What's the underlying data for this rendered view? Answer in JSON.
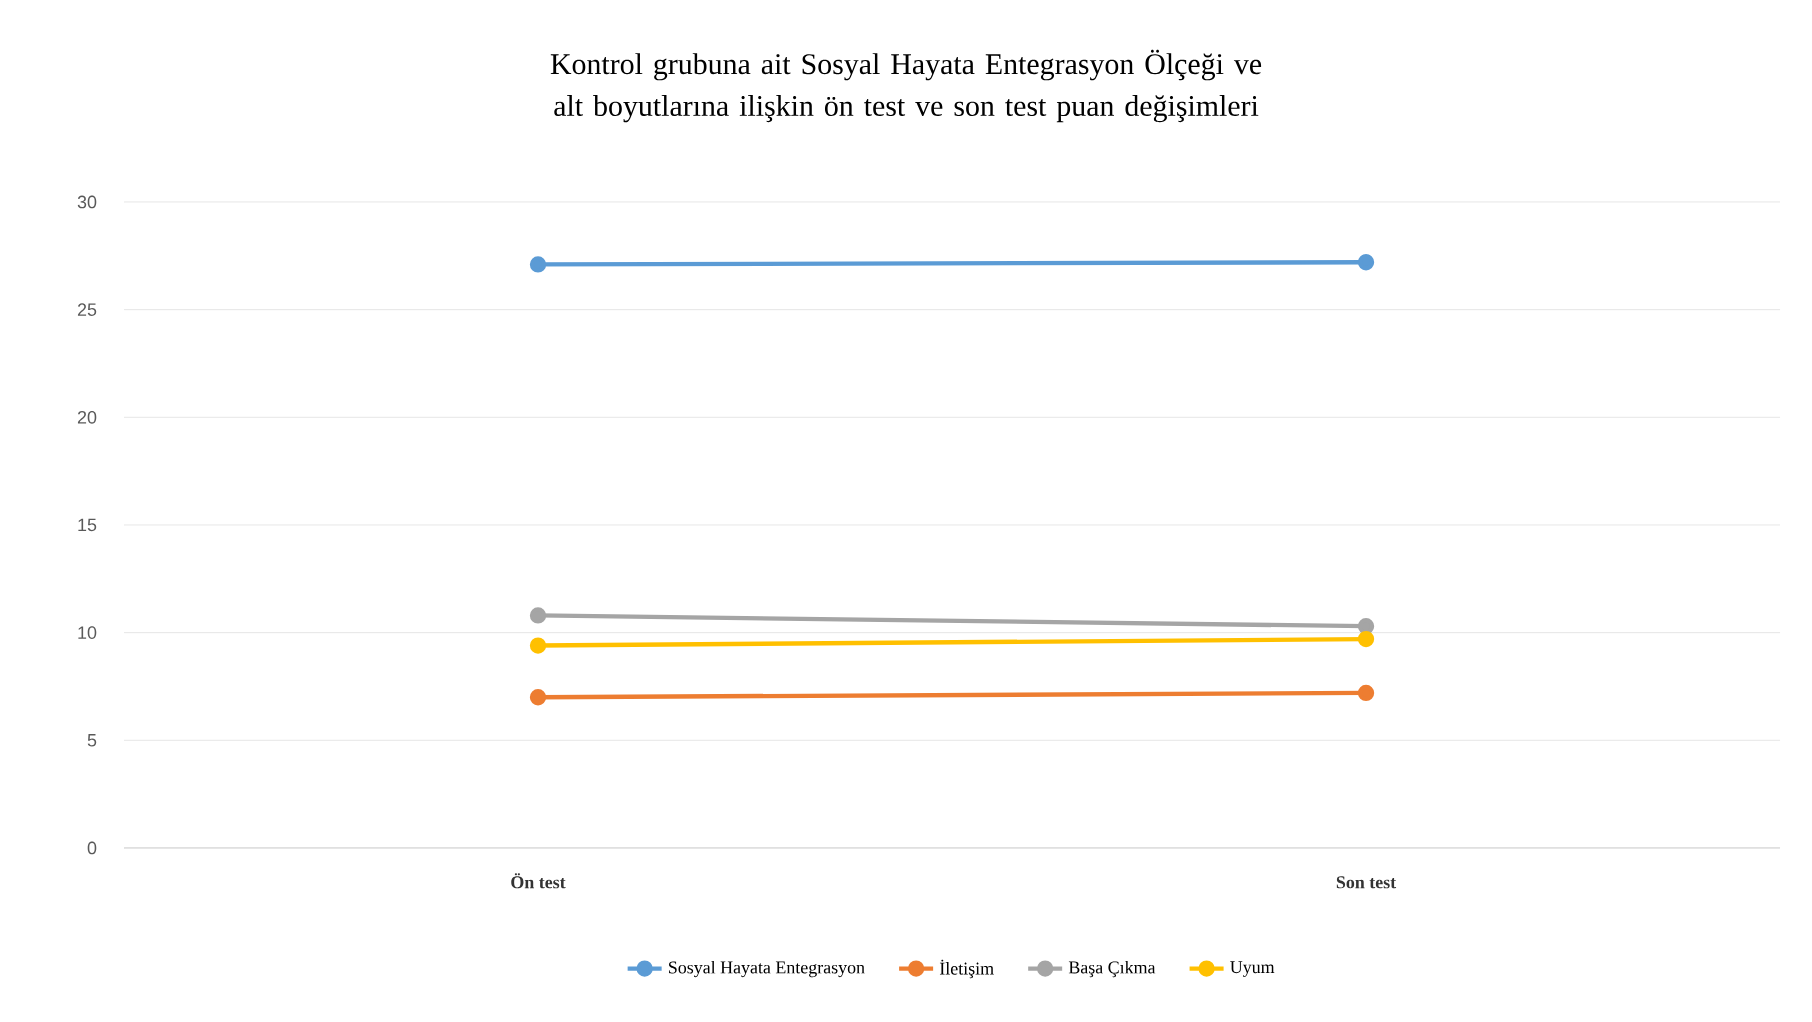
{
  "chart_data": {
    "type": "line",
    "title": "Kontrol grubuna ait Sosyal Hayata Entegrasyon Ölçeği ve alt boyutlarına ilişkin ön test ve son test puan değişimleri",
    "categories": [
      "Ön test",
      "Son test"
    ],
    "series": [
      {
        "name": "Sosyal Hayata Entegrasyon",
        "color": "#5b9bd5",
        "values": [
          27.1,
          27.2
        ]
      },
      {
        "name": "İletişim",
        "color": "#ed7d31",
        "values": [
          7.0,
          7.2
        ]
      },
      {
        "name": "Başa Çıkma",
        "color": "#a5a5a5",
        "values": [
          10.8,
          10.3
        ]
      },
      {
        "name": "Uyum",
        "color": "#ffc000",
        "values": [
          9.4,
          9.7
        ]
      }
    ],
    "ylim": [
      0,
      30
    ],
    "yticks": [
      0,
      5,
      10,
      15,
      20,
      25,
      30
    ],
    "grid": "y",
    "legend": "bottom",
    "marker": "circle",
    "line_style": "solid"
  }
}
